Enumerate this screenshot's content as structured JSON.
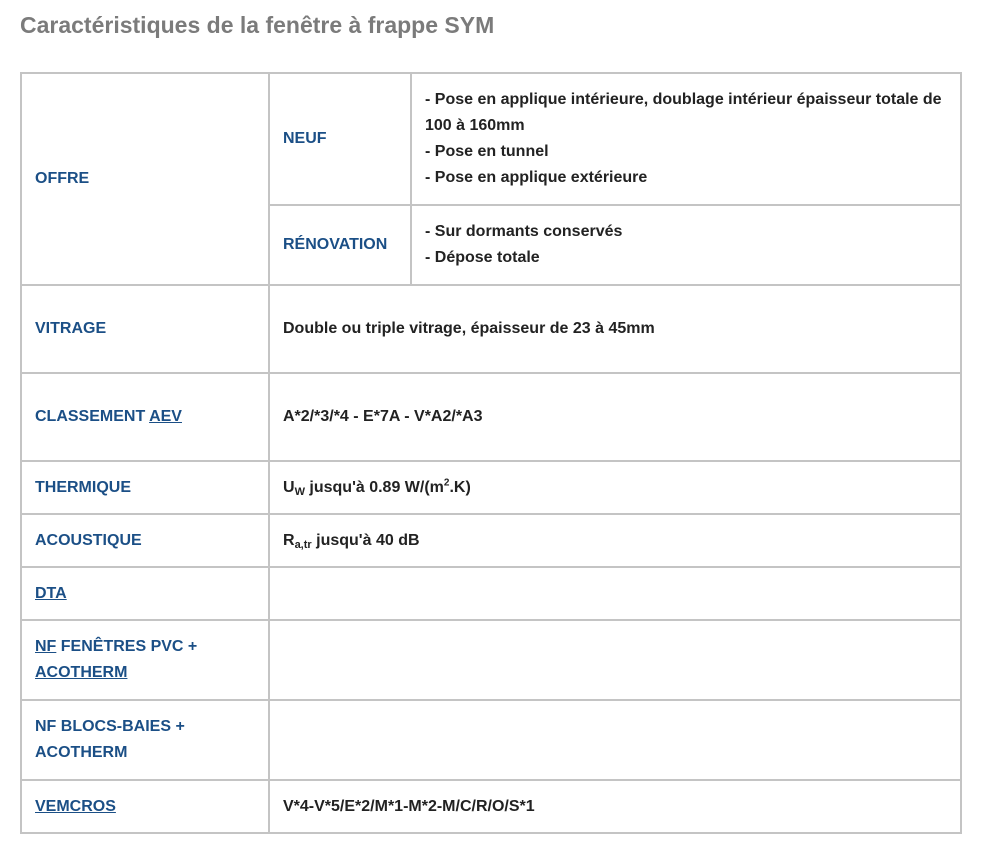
{
  "title": "Caractéristiques de la fenêtre à frappe SYM",
  "offre": {
    "label": "OFFRE",
    "neuf": {
      "label": "NEUF",
      "lines": [
        "- Pose en applique intérieure, doublage intérieur épaisseur totale de 100 à 160mm",
        "- Pose en tunnel",
        "- Pose en applique extérieure"
      ]
    },
    "renovation": {
      "label": "RÉNOVATION",
      "lines": [
        "- Sur dormants conservés",
        "- Dépose totale"
      ]
    }
  },
  "vitrage": {
    "label": "VITRAGE",
    "value": "Double ou triple vitrage, épaisseur de 23 à 45mm"
  },
  "classement": {
    "label": "CLASSEMENT ",
    "link": "AEV",
    "value": "A*2/*3/*4 - E*7A - V*A2/*A3"
  },
  "thermique": {
    "label": "THERMIQUE",
    "symbol": "U",
    "subscript": "W",
    "value_pre": " jusqu'à 0.89 W/(m",
    "sup": "2",
    "value_post": ".K)"
  },
  "acoustique": {
    "label": "ACOUSTIQUE",
    "symbol": "R",
    "subscript": "a,tr",
    "value": " jusqu'à 40 dB"
  },
  "dta": {
    "link": "DTA",
    "value": ""
  },
  "nf_fenetres": {
    "link1": "NF",
    "text": " FENÊTRES PVC + ",
    "link2": "ACOTHERM",
    "value": ""
  },
  "nf_blocs": {
    "label": "NF BLOCS-BAIES + ACOTHERM",
    "value": ""
  },
  "vemcros": {
    "link": "VEMCROS",
    "value": "V*4-V*5/E*2/M*1-M*2-M/C/R/O/S*1"
  }
}
